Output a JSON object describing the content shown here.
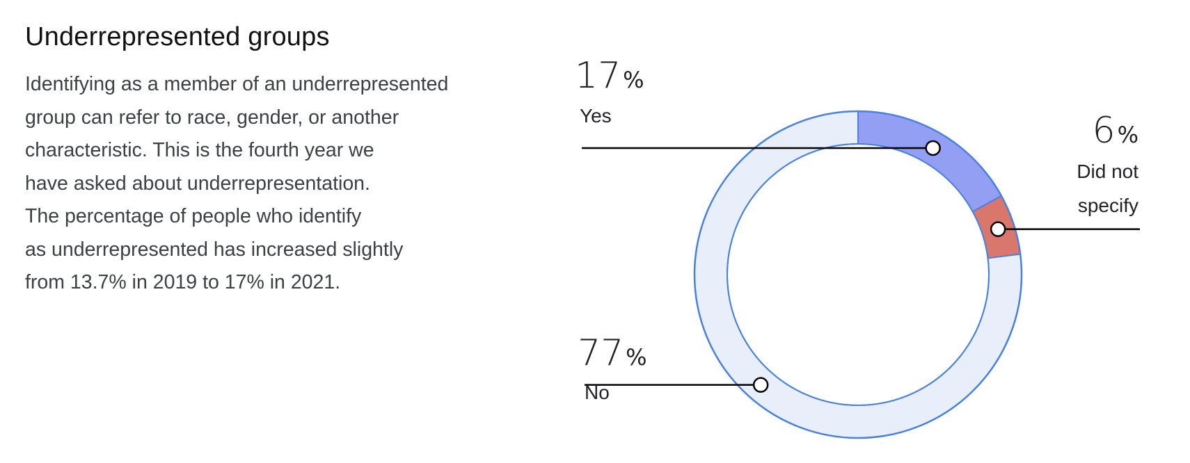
{
  "header": {
    "title": "Underrepresented groups"
  },
  "description": {
    "lines": [
      "Identifying as a member of an underrepresented",
      "group can refer to race, gender, or another",
      "characteristic. This is the fourth year we",
      "have asked about underrepresentation.",
      "The percentage of people who identify",
      "as underrepresented has increased slightly",
      "from 13.7% in 2019 to 17% in 2021."
    ]
  },
  "chart_data": {
    "type": "pie",
    "variant": "donut",
    "slices": [
      {
        "label": "Yes",
        "value": 17,
        "display": "17",
        "unit": "%",
        "color": "#929ff3"
      },
      {
        "label": "Did not specify",
        "value": 6,
        "display": "6",
        "unit": "%",
        "color": "#d9776c"
      },
      {
        "label": "No",
        "value": 77,
        "display": "77",
        "unit": "%",
        "color": "#e8effa"
      }
    ],
    "outline_color": "#4a80e0",
    "leader_color": "#000000"
  }
}
